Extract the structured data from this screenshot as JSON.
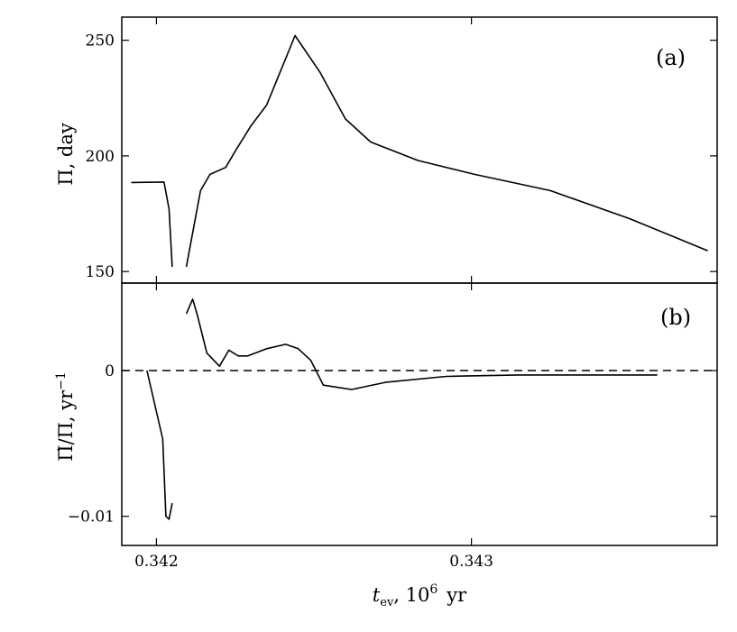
{
  "chart_data": [
    {
      "panel": "(a)",
      "type": "line",
      "ylabel": "Π, day",
      "ylim": [
        145,
        260
      ],
      "yticks": [
        150,
        200,
        250
      ],
      "series": [
        {
          "x": [
            0.34192,
            0.342024,
            0.34204,
            0.34205
          ],
          "y": [
            188.5,
            188.7,
            177,
            152
          ],
          "style": "solid"
        },
        {
          "x": [
            0.342095,
            0.34211,
            0.34214,
            0.34217,
            0.34222,
            0.34225,
            0.3423,
            0.34235,
            0.34238,
            0.34244,
            0.34252,
            0.3426,
            0.34268,
            0.34283,
            0.34301,
            0.34325,
            0.3435,
            0.34375
          ],
          "y": [
            152,
            163,
            185,
            192,
            195,
            202,
            213,
            222,
            232,
            252,
            236,
            216,
            206,
            198,
            192,
            185,
            173,
            159
          ]
        }
      ]
    },
    {
      "panel": "(b)",
      "type": "line",
      "ylabel": "Π̇/Π, yr",
      "ylabel_sup": "−1",
      "ylim": [
        -0.012,
        0.006
      ],
      "yticks": [
        0,
        -0.01
      ],
      "ytick_labels": [
        "0",
        "−0.01"
      ],
      "xlabel_main": "t",
      "xlabel_sub": "ev",
      "xlabel_rest": ", 10",
      "xlabel_sup": "6",
      "xlabel_unit": "yr",
      "xlim": [
        0.34189,
        0.34378
      ],
      "xticks": [
        0.342,
        0.343
      ],
      "xtick_labels": [
        "0.342",
        "0.343"
      ],
      "reference_line": {
        "y": 0,
        "style": "dashed"
      },
      "series": [
        {
          "x": [
            0.34197,
            0.34202,
            0.34203,
            0.34204,
            0.34205
          ],
          "y": [
            0.0,
            -0.0047,
            -0.01,
            -0.0102,
            -0.0091
          ]
        },
        {
          "x": [
            0.342095,
            0.342115,
            0.34213,
            0.34216,
            0.3422,
            0.34223,
            0.34226,
            0.34229,
            0.34235,
            0.34241,
            0.34245,
            0.34249,
            0.34253,
            0.34262,
            0.34273,
            0.34292,
            0.34315,
            0.3434,
            0.34359
          ],
          "y": [
            0.0039,
            0.0049,
            0.0038,
            0.0012,
            0.0003,
            0.0014,
            0.001,
            0.001,
            0.0015,
            0.0018,
            0.0015,
            0.0007,
            -0.001,
            -0.0013,
            -0.0008,
            -0.0004,
            -0.0003,
            -0.0003,
            -0.0003
          ]
        }
      ]
    }
  ]
}
